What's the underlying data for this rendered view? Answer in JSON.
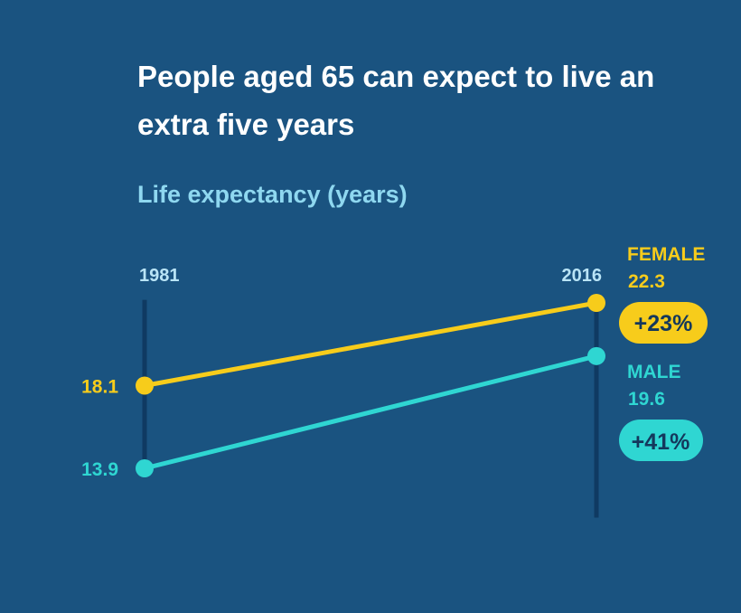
{
  "title": "People aged 65 can expect to live an extra five years",
  "subtitle": "Life expectancy (years)",
  "colors": {
    "background": "#1a5380",
    "axis": "#0f3a62",
    "female": "#f7cc1b",
    "male": "#2fd6d2",
    "badge_text": "#14385c"
  },
  "chart_data": {
    "type": "line",
    "title": "People aged 65 can expect to live an extra five years",
    "ylabel": "Life expectancy (years)",
    "x": [
      "1981",
      "2016"
    ],
    "series": [
      {
        "name": "FEMALE",
        "values": [
          18.1,
          22.3
        ],
        "start_label": "18.1",
        "end_label": "22.3",
        "change": "+23%"
      },
      {
        "name": "MALE",
        "values": [
          13.9,
          19.6
        ],
        "start_label": "13.9",
        "end_label": "19.6",
        "change": "+41%"
      }
    ],
    "ylim": [
      11.4,
      23.6
    ],
    "grid": false,
    "legend": "right"
  }
}
